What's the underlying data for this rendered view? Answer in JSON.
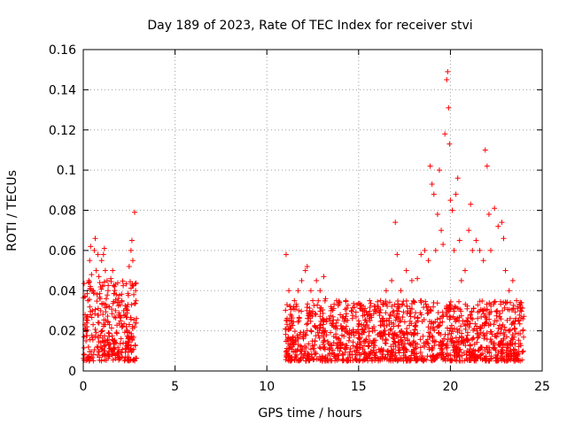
{
  "chart_data": {
    "type": "scatter",
    "title": "Day 189 of 2023, Rate Of TEC Index for receiver stvi",
    "xlabel": "GPS time / hours",
    "ylabel": "ROTI / TECUs",
    "xlim": [
      0,
      25
    ],
    "ylim": [
      0,
      0.16
    ],
    "xticks": [
      "0",
      "5",
      "10",
      "15",
      "20",
      "25"
    ],
    "yticks": [
      "0",
      "0.02",
      "0.04",
      "0.06",
      "0.08",
      "0.1",
      "0.12",
      "0.14",
      "0.16"
    ],
    "grid": true,
    "legend": "none",
    "marker": "+",
    "color": "#ff0000",
    "series": [
      {
        "points": [
          [
            0.05,
            0.008
          ],
          [
            0.1,
            0.028
          ],
          [
            0.15,
            0.015
          ],
          [
            0.2,
            0.022
          ],
          [
            0.25,
            0.035
          ],
          [
            0.3,
            0.045
          ],
          [
            0.35,
            0.055
          ],
          [
            0.4,
            0.062
          ],
          [
            0.45,
            0.048
          ],
          [
            0.5,
            0.03
          ],
          [
            0.55,
            0.04
          ],
          [
            0.6,
            0.06
          ],
          [
            0.65,
            0.066
          ],
          [
            0.7,
            0.05
          ],
          [
            0.75,
            0.038
          ],
          [
            0.8,
            0.058
          ],
          [
            0.85,
            0.047
          ],
          [
            0.9,
            0.044
          ],
          [
            0.95,
            0.03
          ],
          [
            1.0,
            0.055
          ],
          [
            1.05,
            0.042
          ],
          [
            1.1,
            0.058
          ],
          [
            1.15,
            0.061
          ],
          [
            1.2,
            0.05
          ],
          [
            1.25,
            0.036
          ],
          [
            1.3,
            0.045
          ],
          [
            1.35,
            0.04
          ],
          [
            1.4,
            0.032
          ],
          [
            1.5,
            0.046
          ],
          [
            1.6,
            0.05
          ],
          [
            1.7,
            0.042
          ],
          [
            1.8,
            0.038
          ],
          [
            1.9,
            0.036
          ],
          [
            2.0,
            0.033
          ],
          [
            2.1,
            0.035
          ],
          [
            2.2,
            0.03
          ],
          [
            2.3,
            0.028
          ],
          [
            2.4,
            0.03
          ],
          [
            2.5,
            0.052
          ],
          [
            2.6,
            0.06
          ],
          [
            2.65,
            0.065
          ],
          [
            2.7,
            0.055
          ],
          [
            2.75,
            0.038
          ],
          [
            2.8,
            0.079
          ],
          [
            2.85,
            0.04
          ],
          [
            11.05,
            0.058
          ],
          [
            11.1,
            0.033
          ],
          [
            11.2,
            0.04
          ],
          [
            11.3,
            0.025
          ],
          [
            11.5,
            0.035
          ],
          [
            11.7,
            0.04
          ],
          [
            11.9,
            0.045
          ],
          [
            12.1,
            0.05
          ],
          [
            12.2,
            0.052
          ],
          [
            12.4,
            0.04
          ],
          [
            12.5,
            0.035
          ],
          [
            12.7,
            0.045
          ],
          [
            12.9,
            0.04
          ],
          [
            13.1,
            0.047
          ],
          [
            13.2,
            0.036
          ],
          [
            13.5,
            0.03
          ],
          [
            13.8,
            0.035
          ],
          [
            14.0,
            0.028
          ],
          [
            14.3,
            0.035
          ],
          [
            14.6,
            0.03
          ],
          [
            15.0,
            0.025
          ],
          [
            15.3,
            0.03
          ],
          [
            15.6,
            0.035
          ],
          [
            15.9,
            0.03
          ],
          [
            16.2,
            0.035
          ],
          [
            16.5,
            0.04
          ],
          [
            16.8,
            0.045
          ],
          [
            17.0,
            0.074
          ],
          [
            17.1,
            0.058
          ],
          [
            17.3,
            0.04
          ],
          [
            17.6,
            0.05
          ],
          [
            17.9,
            0.045
          ],
          [
            18.2,
            0.046
          ],
          [
            18.4,
            0.058
          ],
          [
            18.6,
            0.06
          ],
          [
            18.8,
            0.055
          ],
          [
            18.9,
            0.102
          ],
          [
            19.0,
            0.093
          ],
          [
            19.1,
            0.088
          ],
          [
            19.2,
            0.06
          ],
          [
            19.3,
            0.078
          ],
          [
            19.4,
            0.1
          ],
          [
            19.5,
            0.07
          ],
          [
            19.6,
            0.063
          ],
          [
            19.7,
            0.118
          ],
          [
            19.8,
            0.145
          ],
          [
            19.85,
            0.149
          ],
          [
            19.9,
            0.131
          ],
          [
            19.95,
            0.113
          ],
          [
            20.0,
            0.085
          ],
          [
            20.1,
            0.08
          ],
          [
            20.2,
            0.06
          ],
          [
            20.3,
            0.088
          ],
          [
            20.4,
            0.096
          ],
          [
            20.5,
            0.065
          ],
          [
            20.6,
            0.045
          ],
          [
            20.8,
            0.05
          ],
          [
            21.0,
            0.07
          ],
          [
            21.1,
            0.083
          ],
          [
            21.2,
            0.06
          ],
          [
            21.4,
            0.065
          ],
          [
            21.6,
            0.06
          ],
          [
            21.8,
            0.055
          ],
          [
            21.9,
            0.11
          ],
          [
            22.0,
            0.102
          ],
          [
            22.1,
            0.078
          ],
          [
            22.2,
            0.06
          ],
          [
            22.4,
            0.081
          ],
          [
            22.6,
            0.072
          ],
          [
            22.8,
            0.074
          ],
          [
            22.9,
            0.066
          ],
          [
            23.0,
            0.05
          ],
          [
            23.2,
            0.04
          ],
          [
            23.4,
            0.045
          ],
          [
            23.6,
            0.035
          ],
          [
            23.8,
            0.03
          ],
          [
            23.95,
            0.02
          ]
        ]
      }
    ],
    "clusters": [
      {
        "x": [
          0.0,
          2.9
        ],
        "y": [
          0.005,
          0.045
        ]
      },
      {
        "x": [
          11.0,
          24.0
        ],
        "y": [
          0.005,
          0.035
        ]
      }
    ]
  }
}
